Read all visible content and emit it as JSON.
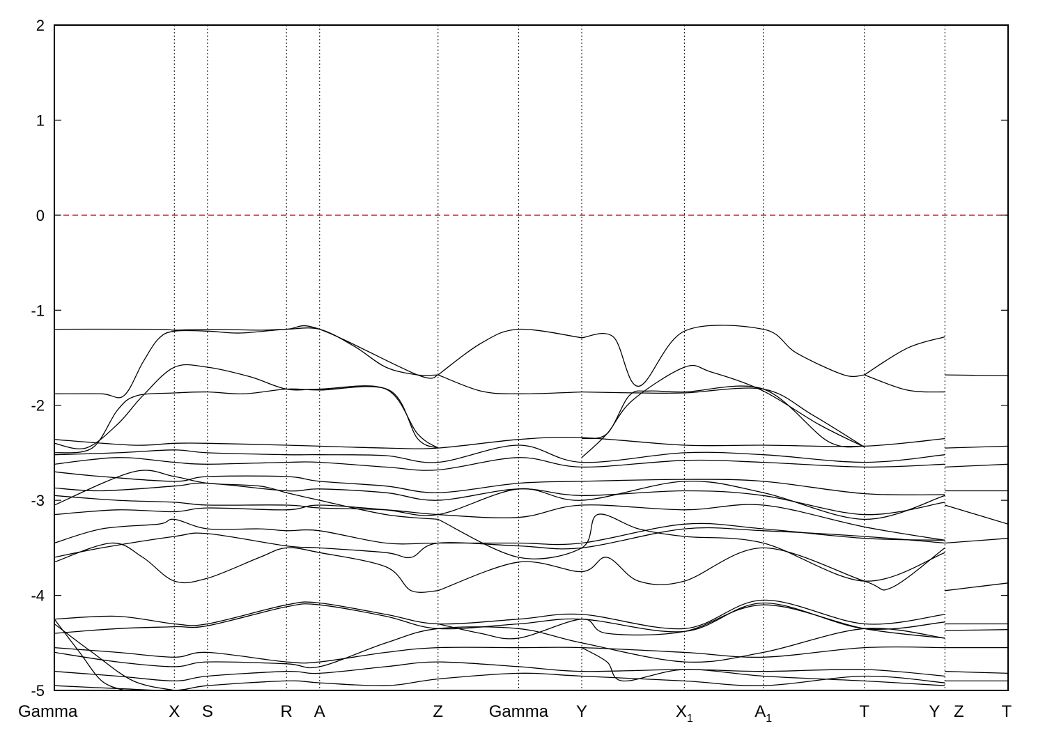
{
  "chart_data": {
    "type": "line",
    "title": "",
    "xlabel": "",
    "ylabel": "",
    "xlim": [
      0,
      30.2
    ],
    "ylim": [
      -5,
      2
    ],
    "y_ticks": [
      -5,
      -4,
      -3,
      -2,
      -1,
      0,
      1,
      2
    ],
    "y_tick_labels": [
      "-5",
      "-4",
      "-3",
      "-2",
      "-1",
      "0",
      "1",
      "2"
    ],
    "grid": false,
    "legend": "none",
    "fermi_level": {
      "y": 0,
      "color": "#dd0000",
      "style": "dashed"
    },
    "band_color": "#000000",
    "kpoints": [
      {
        "label": "Gamma",
        "sub": "",
        "x": 0.0
      },
      {
        "label": "X",
        "sub": "",
        "x": 3.8
      },
      {
        "label": "S",
        "sub": "",
        "x": 4.85
      },
      {
        "label": "R",
        "sub": "",
        "x": 7.35
      },
      {
        "label": "A",
        "sub": "",
        "x": 8.4
      },
      {
        "label": "Z",
        "sub": "",
        "x": 12.15
      },
      {
        "label": "Gamma",
        "sub": "",
        "x": 14.7
      },
      {
        "label": "Y",
        "sub": "",
        "x": 16.7
      },
      {
        "label": "X",
        "sub": "1",
        "x": 19.95
      },
      {
        "label": "A",
        "sub": "1",
        "x": 22.45
      },
      {
        "label": "T",
        "sub": "",
        "x": 25.65
      },
      {
        "label": "Y",
        "sub": "",
        "x": 28.2
      },
      {
        "label": "Z",
        "sub": "",
        "x": 28.2
      },
      {
        "label": "T",
        "sub": "",
        "x": 30.2
      }
    ],
    "series": [
      {
        "x": [
          0,
          3.3,
          3.8,
          4.85,
          6.5,
          7.35,
          8.4,
          9.5,
          10.5,
          11.5,
          12.15
        ],
        "y": [
          -1.2,
          -1.2,
          -1.21,
          -1.2,
          -1.21,
          -1.2,
          -1.2,
          -1.38,
          -1.6,
          -1.68,
          -1.68
        ]
      },
      {
        "x": [
          0,
          1.5,
          2.2,
          2.8,
          3.3,
          3.8,
          4.85,
          5.9,
          7.35,
          8.4,
          11.5,
          12.15
        ],
        "y": [
          -1.88,
          -1.88,
          -1.9,
          -1.55,
          -1.3,
          -1.22,
          -1.22,
          -1.24,
          -1.2,
          -1.2,
          -1.68,
          -1.68
        ]
      },
      {
        "x": [
          0,
          1.0,
          2.0,
          2.8,
          3.8,
          4.85,
          6.2,
          7.35,
          8.4,
          10.5,
          11.5,
          12.15
        ],
        "y": [
          -2.4,
          -2.45,
          -2.2,
          -1.9,
          -1.6,
          -1.6,
          -1.7,
          -1.83,
          -1.83,
          -1.83,
          -2.3,
          -2.45
        ]
      },
      {
        "x": [
          0,
          1.2,
          2.0,
          2.6,
          3.8,
          4.85,
          6.0,
          7.35,
          8.4,
          10.6,
          11.5,
          12.15
        ],
        "y": [
          -2.5,
          -2.45,
          -2.05,
          -1.9,
          -1.87,
          -1.86,
          -1.88,
          -1.83,
          -1.84,
          -1.84,
          -2.35,
          -2.45
        ]
      },
      {
        "x": [
          12.15,
          13.5,
          14.7,
          16.7
        ],
        "y": [
          -1.68,
          -1.35,
          -1.2,
          -1.29
        ]
      },
      {
        "x": [
          12.15,
          13.5,
          14.7,
          16.7
        ],
        "y": [
          -1.68,
          -1.85,
          -1.88,
          -1.86
        ]
      },
      {
        "x": [
          16.7,
          17.7,
          18.5,
          19.95,
          22.45,
          23.5,
          25.0,
          25.65
        ],
        "y": [
          -1.29,
          -1.28,
          -1.8,
          -1.22,
          -1.2,
          -1.45,
          -1.68,
          -1.68
        ]
      },
      {
        "x": [
          16.7,
          17.5,
          18.2,
          18.8,
          19.95,
          22.45,
          24.5,
          25.65
        ],
        "y": [
          -2.35,
          -2.3,
          -1.9,
          -1.85,
          -1.86,
          -1.83,
          -2.38,
          -2.43
        ]
      },
      {
        "x": [
          16.7,
          17.5,
          18.3,
          19.95,
          20.8,
          22.45,
          24.2,
          25.65
        ],
        "y": [
          -2.55,
          -2.3,
          -1.95,
          -1.6,
          -1.65,
          -1.85,
          -2.2,
          -2.44
        ]
      },
      {
        "x": [
          16.7,
          18.5,
          19.95,
          22.45,
          24.0,
          25.65
        ],
        "y": [
          -1.86,
          -1.87,
          -1.87,
          -1.83,
          -2.1,
          -2.44
        ]
      },
      {
        "x": [
          25.65,
          27.0,
          28.2
        ],
        "y": [
          -1.68,
          -1.4,
          -1.28
        ]
      },
      {
        "x": [
          25.65,
          27.0,
          28.2
        ],
        "y": [
          -1.68,
          -1.84,
          -1.86
        ]
      },
      {
        "x": [
          28.2,
          30.2
        ],
        "y": [
          -1.68,
          -1.69
        ]
      },
      {
        "x": [
          0,
          2.5,
          3.8,
          4.85,
          7.35,
          8.4,
          10.5,
          12.15,
          14.7,
          16.7,
          19.95,
          22.45,
          25.65,
          28.2
        ],
        "y": [
          -2.36,
          -2.42,
          -2.4,
          -2.4,
          -2.42,
          -2.43,
          -2.45,
          -2.45,
          -2.36,
          -2.34,
          -2.42,
          -2.42,
          -2.43,
          -2.35
        ]
      },
      {
        "x": [
          0,
          2.0,
          3.8,
          4.85,
          7.35,
          8.4,
          10.5,
          12.15,
          14.7,
          16.7,
          19.95,
          22.45,
          25.65,
          28.2
        ],
        "y": [
          -2.52,
          -2.5,
          -2.47,
          -2.5,
          -2.52,
          -2.52,
          -2.53,
          -2.6,
          -2.42,
          -2.6,
          -2.5,
          -2.52,
          -2.6,
          -2.52
        ]
      },
      {
        "x": [
          0,
          2.0,
          3.8,
          4.85,
          7.35,
          8.4,
          10.5,
          12.15,
          14.7,
          16.7,
          19.95,
          22.45,
          25.65,
          28.2
        ],
        "y": [
          -2.62,
          -2.55,
          -2.6,
          -2.62,
          -2.6,
          -2.6,
          -2.65,
          -2.68,
          -2.55,
          -2.65,
          -2.58,
          -2.6,
          -2.65,
          -2.62
        ]
      },
      {
        "x": [
          0,
          1.5,
          3.8,
          4.85,
          7.35,
          8.4,
          10.5,
          12.15,
          14.7,
          16.7,
          19.95,
          22.45,
          25.65,
          28.2
        ],
        "y": [
          -2.7,
          -2.75,
          -2.8,
          -2.75,
          -2.75,
          -2.8,
          -2.85,
          -2.92,
          -2.82,
          -2.8,
          -2.78,
          -2.8,
          -2.93,
          -2.94
        ]
      },
      {
        "x": [
          0,
          1.5,
          3.8,
          4.85,
          7.35,
          8.4,
          10.5,
          12.15,
          14.7,
          16.7,
          19.95,
          22.45,
          25.65,
          28.2
        ],
        "y": [
          -2.87,
          -2.9,
          -2.85,
          -2.82,
          -2.9,
          -2.88,
          -2.92,
          -3.0,
          -2.88,
          -2.95,
          -2.9,
          -2.95,
          -3.15,
          -3.02
        ]
      },
      {
        "x": [
          0,
          2.0,
          3.8,
          4.85,
          7.35,
          8.4,
          10.5,
          12.15,
          14.7,
          16.7,
          19.95,
          22.45,
          25.65,
          28.2
        ],
        "y": [
          -2.95,
          -3.0,
          -3.02,
          -3.05,
          -3.05,
          -3.08,
          -3.1,
          -3.15,
          -3.18,
          -3.05,
          -3.1,
          -3.05,
          -3.28,
          -3.42
        ]
      },
      {
        "x": [
          0,
          2.0,
          3.8,
          4.85,
          7.35,
          8.4,
          10.5,
          12.15,
          14.7,
          16.7,
          19.95,
          22.45,
          25.65,
          28.2
        ],
        "y": [
          -3.15,
          -3.1,
          -3.12,
          -3.08,
          -3.1,
          -3.05,
          -3.1,
          -3.15,
          -2.88,
          -3.0,
          -2.8,
          -2.92,
          -3.2,
          -2.95
        ]
      },
      {
        "x": [
          0,
          1.5,
          3.3,
          3.8,
          4.85,
          6.5,
          7.35,
          8.4,
          10.5,
          12.15,
          14.7,
          16.7,
          19.95,
          22.45,
          25.65,
          28.2
        ],
        "y": [
          -3.45,
          -3.3,
          -3.25,
          -3.2,
          -3.3,
          -3.3,
          -3.32,
          -3.32,
          -3.45,
          -3.45,
          -3.45,
          -3.45,
          -3.25,
          -3.3,
          -3.4,
          -3.42
        ]
      },
      {
        "x": [
          0,
          1.5,
          3.8,
          4.85,
          7.35,
          8.4,
          10.5,
          11.3,
          12.15,
          14.7,
          16.7,
          19.95,
          22.45,
          25.65,
          28.2
        ],
        "y": [
          -3.6,
          -3.5,
          -3.38,
          -3.35,
          -3.48,
          -3.5,
          -3.55,
          -3.6,
          -3.45,
          -3.48,
          -3.5,
          -3.3,
          -3.32,
          -3.38,
          -3.45
        ]
      },
      {
        "x": [
          0,
          2.5,
          3.8,
          4.85,
          6.5,
          7.35,
          8.4,
          10.5,
          12.15
        ],
        "y": [
          -3.05,
          -2.7,
          -2.75,
          -2.82,
          -2.85,
          -2.92,
          -3.0,
          -3.15,
          -3.2
        ]
      },
      {
        "x": [
          0,
          1.8,
          2.8,
          3.8,
          4.85,
          6.5,
          7.35,
          8.4,
          10.5,
          11.3,
          12.15
        ],
        "y": [
          -3.65,
          -3.45,
          -3.6,
          -3.85,
          -3.82,
          -3.6,
          -3.5,
          -3.55,
          -3.7,
          -3.95,
          -3.95
        ]
      },
      {
        "x": [
          12.15,
          14.7,
          16.7,
          17.5,
          18.5,
          19.95,
          22.45,
          25.65,
          26.5,
          28.2
        ],
        "y": [
          -3.95,
          -3.65,
          -3.75,
          -3.6,
          -3.85,
          -3.85,
          -3.5,
          -3.85,
          -3.92,
          -3.5
        ]
      },
      {
        "x": [
          12.15,
          14.7,
          16.7,
          17.2,
          18.5,
          19.95,
          22.45,
          25.65,
          28.2
        ],
        "y": [
          -3.2,
          -3.6,
          -3.5,
          -3.15,
          -3.3,
          -3.38,
          -3.45,
          -3.85,
          -3.55
        ]
      },
      {
        "x": [
          28.2,
          30.2
        ],
        "y": [
          -2.45,
          -2.43
        ]
      },
      {
        "x": [
          28.2,
          30.2
        ],
        "y": [
          -2.65,
          -2.62
        ]
      },
      {
        "x": [
          28.2,
          30.2
        ],
        "y": [
          -2.9,
          -2.9
        ]
      },
      {
        "x": [
          28.2,
          30.2
        ],
        "y": [
          -3.05,
          -3.25
        ]
      },
      {
        "x": [
          28.2,
          30.2
        ],
        "y": [
          -3.45,
          -3.4
        ]
      },
      {
        "x": [
          28.2,
          30.2
        ],
        "y": [
          -3.95,
          -3.87
        ]
      },
      {
        "x": [
          0,
          2.0,
          3.8,
          4.85,
          7.35,
          8.4,
          10.5,
          12.15,
          14.7,
          16.7,
          19.95,
          22.45,
          25.65,
          28.2
        ],
        "y": [
          -4.25,
          -4.22,
          -4.3,
          -4.3,
          -4.1,
          -4.08,
          -4.2,
          -4.3,
          -4.25,
          -4.2,
          -4.35,
          -4.05,
          -4.3,
          -4.2
        ]
      },
      {
        "x": [
          0,
          2.0,
          3.8,
          4.85,
          7.35,
          8.4,
          10.5,
          12.15,
          14.7,
          16.7,
          19.95,
          22.45,
          25.65,
          28.2
        ],
        "y": [
          -4.4,
          -4.35,
          -4.33,
          -4.32,
          -4.12,
          -4.1,
          -4.22,
          -4.35,
          -4.3,
          -4.25,
          -4.38,
          -4.08,
          -4.35,
          -4.28
        ]
      },
      {
        "x": [
          0,
          2.0,
          3.8,
          4.85,
          7.35,
          8.4,
          10.5,
          12.15,
          14.7,
          16.7,
          19.95,
          22.45,
          25.65,
          28.2
        ],
        "y": [
          -4.55,
          -4.6,
          -4.65,
          -4.6,
          -4.7,
          -4.7,
          -4.6,
          -4.55,
          -4.55,
          -4.55,
          -4.6,
          -4.65,
          -4.55,
          -4.55
        ]
      },
      {
        "x": [
          0,
          2.0,
          3.8,
          4.85,
          7.35,
          8.4,
          10.5,
          12.15,
          14.7,
          16.7,
          19.95,
          22.45,
          25.65,
          28.2
        ],
        "y": [
          -4.6,
          -4.7,
          -4.75,
          -4.7,
          -4.72,
          -4.75,
          -4.5,
          -4.35,
          -4.35,
          -4.5,
          -4.7,
          -4.6,
          -4.35,
          -4.45
        ]
      },
      {
        "x": [
          0,
          2.0,
          3.8,
          4.85,
          7.35,
          8.4,
          10.5,
          12.15,
          14.7,
          16.7,
          19.95,
          22.45,
          25.65,
          28.2
        ],
        "y": [
          -4.8,
          -4.85,
          -4.9,
          -4.85,
          -4.8,
          -4.82,
          -4.75,
          -4.7,
          -4.75,
          -4.8,
          -4.78,
          -4.8,
          -4.78,
          -4.85
        ]
      },
      {
        "x": [
          0,
          2.0,
          3.8,
          4.85,
          7.35,
          8.4,
          10.5,
          12.15,
          14.7,
          16.7,
          19.95,
          22.45,
          25.65,
          28.2
        ],
        "y": [
          -4.95,
          -4.98,
          -5.0,
          -4.95,
          -4.9,
          -4.92,
          -4.95,
          -4.88,
          -4.82,
          -4.85,
          -4.9,
          -4.95,
          -4.85,
          -4.92
        ]
      },
      {
        "x": [
          0,
          1.2,
          2.5,
          3.8
        ],
        "y": [
          -4.3,
          -4.6,
          -4.9,
          -5.0
        ]
      },
      {
        "x": [
          0,
          0.8,
          1.5,
          2.2
        ],
        "y": [
          -4.25,
          -4.6,
          -4.9,
          -5.0
        ]
      },
      {
        "x": [
          12.15,
          13.5,
          14.7,
          16.7,
          17.5,
          19.95,
          22.45,
          25.65,
          28.2
        ],
        "y": [
          -4.3,
          -4.4,
          -4.45,
          -4.25,
          -4.4,
          -4.38,
          -4.1,
          -4.35,
          -4.45
        ]
      },
      {
        "x": [
          16.7,
          17.5,
          18.0,
          19.95,
          22.45,
          25.65,
          28.2
        ],
        "y": [
          -4.55,
          -4.7,
          -4.9,
          -4.78,
          -4.85,
          -4.9,
          -4.95
        ]
      },
      {
        "x": [
          28.2,
          30.2
        ],
        "y": [
          -4.3,
          -4.3
        ]
      },
      {
        "x": [
          28.2,
          30.2
        ],
        "y": [
          -4.37,
          -4.36
        ]
      },
      {
        "x": [
          28.2,
          30.2
        ],
        "y": [
          -4.55,
          -4.55
        ]
      },
      {
        "x": [
          28.2,
          30.2
        ],
        "y": [
          -4.8,
          -4.82
        ]
      },
      {
        "x": [
          28.2,
          30.2
        ],
        "y": [
          -4.9,
          -4.9
        ]
      }
    ]
  }
}
